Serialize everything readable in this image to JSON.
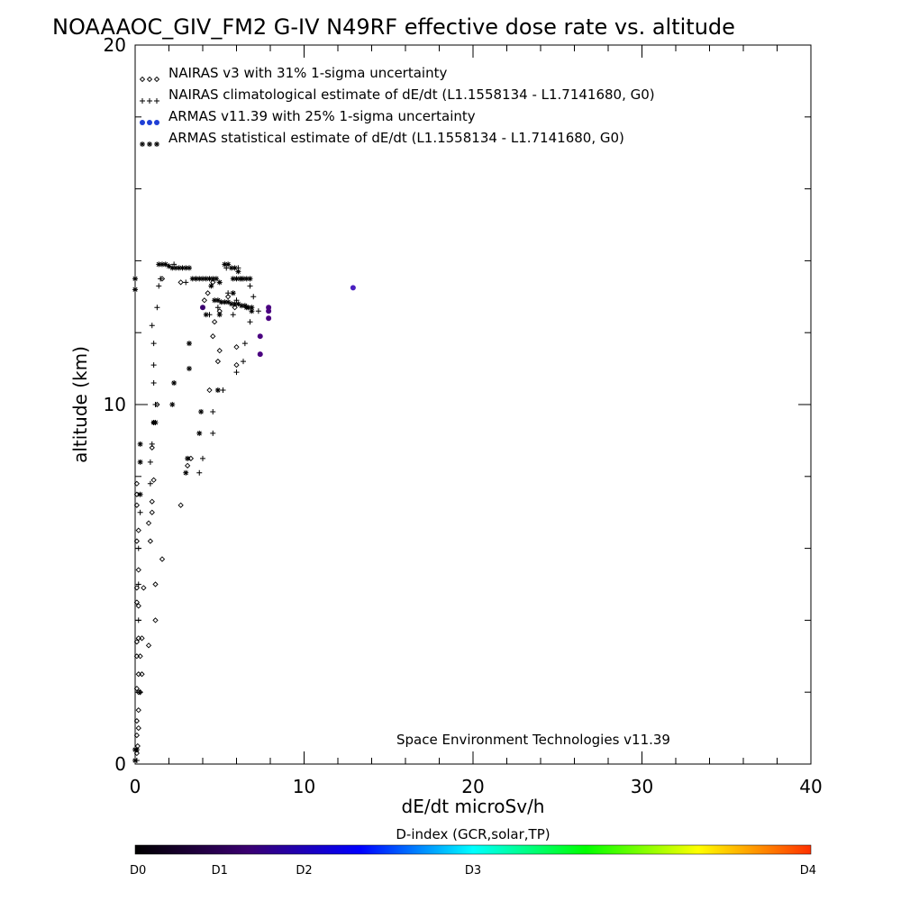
{
  "chart_data": {
    "type": "scatter",
    "title": "NOAAAOC_GIV_FM2 G-IV   N49RF  effective dose rate vs. altitude",
    "xlabel": "dE/dt microSv/h",
    "ylabel": "altitude (km)",
    "xlim": [
      0,
      40
    ],
    "ylim": [
      0,
      20
    ],
    "x_ticks": [
      "0",
      "10",
      "20",
      "30",
      "40"
    ],
    "y_ticks": [
      "0",
      "10",
      "20"
    ],
    "grid": false,
    "legend_position": "top-left",
    "annotation": "Space Environment Technologies v11.39",
    "colorbar": {
      "title": "D-index (GCR,solar,TP)",
      "stops": [
        "#000000",
        "#3a0070",
        "#0000ff",
        "#00ffff",
        "#00ff00",
        "#ffff00",
        "#ff3000"
      ],
      "labels": [
        {
          "text": "D0",
          "value": 0
        },
        {
          "text": "D1",
          "value": 0.5
        },
        {
          "text": "D2",
          "value": 1.0
        },
        {
          "text": "D3",
          "value": 2.0
        },
        {
          "text": "D4",
          "value": 4.0
        }
      ],
      "max": 4.0
    },
    "series": [
      {
        "name": "NAIRAS v3 with 31% 1-sigma uncertainty",
        "marker": "diamond",
        "color": "#000000",
        "points": [
          [
            0.1,
            0.3
          ],
          [
            0.15,
            0.5
          ],
          [
            0.1,
            0.8
          ],
          [
            0.2,
            1.0
          ],
          [
            0.1,
            1.2
          ],
          [
            0.2,
            1.5
          ],
          [
            0.2,
            2.0
          ],
          [
            0.3,
            2.0
          ],
          [
            0.1,
            2.1
          ],
          [
            0.2,
            2.5
          ],
          [
            0.4,
            2.5
          ],
          [
            0.1,
            3.0
          ],
          [
            0.3,
            3.0
          ],
          [
            0.8,
            3.3
          ],
          [
            0.1,
            3.4
          ],
          [
            0.2,
            3.5
          ],
          [
            0.4,
            3.5
          ],
          [
            1.2,
            4.0
          ],
          [
            0.2,
            4.4
          ],
          [
            0.1,
            4.5
          ],
          [
            0.1,
            4.9
          ],
          [
            0.5,
            4.9
          ],
          [
            1.2,
            5.0
          ],
          [
            0.2,
            5.4
          ],
          [
            1.6,
            5.7
          ],
          [
            0.1,
            6.2
          ],
          [
            0.9,
            6.2
          ],
          [
            0.2,
            6.5
          ],
          [
            0.8,
            6.7
          ],
          [
            1.0,
            7.0
          ],
          [
            0.1,
            7.2
          ],
          [
            0.1,
            7.5
          ],
          [
            1.0,
            7.3
          ],
          [
            2.7,
            7.2
          ],
          [
            0.1,
            7.8
          ],
          [
            1.1,
            7.9
          ],
          [
            3.1,
            8.3
          ],
          [
            3.3,
            8.5
          ],
          [
            1.0,
            8.8
          ],
          [
            1.1,
            9.5
          ],
          [
            1.3,
            10.0
          ],
          [
            4.4,
            10.4
          ],
          [
            4.9,
            11.2
          ],
          [
            6.0,
            11.1
          ],
          [
            5.0,
            11.5
          ],
          [
            6.0,
            11.6
          ],
          [
            4.6,
            11.9
          ],
          [
            4.7,
            12.3
          ],
          [
            5.0,
            12.6
          ],
          [
            5.9,
            12.7
          ],
          [
            4.1,
            12.9
          ],
          [
            4.3,
            13.1
          ],
          [
            5.5,
            13.0
          ],
          [
            4.6,
            13.4
          ],
          [
            1.6,
            13.5
          ],
          [
            2.7,
            13.4
          ]
        ]
      },
      {
        "name": "NAIRAS climatological estimate of dE/dt (L1.1558134 - L1.7141680, G0)",
        "marker": "plus",
        "color": "#000000",
        "points": [
          [
            0.1,
            0.1
          ],
          [
            0.3,
            2.0
          ],
          [
            0.2,
            4.0
          ],
          [
            0.2,
            5.0
          ],
          [
            0.2,
            6.0
          ],
          [
            0.3,
            7.0
          ],
          [
            0.9,
            7.8
          ],
          [
            0.9,
            8.4
          ],
          [
            1.0,
            8.9
          ],
          [
            1.2,
            9.5
          ],
          [
            1.2,
            10.0
          ],
          [
            1.1,
            10.6
          ],
          [
            1.1,
            11.1
          ],
          [
            1.1,
            11.7
          ],
          [
            1.0,
            12.2
          ],
          [
            1.3,
            12.7
          ],
          [
            1.4,
            13.3
          ],
          [
            3.8,
            8.1
          ],
          [
            4.0,
            8.5
          ],
          [
            4.6,
            9.2
          ],
          [
            4.6,
            9.8
          ],
          [
            5.2,
            10.4
          ],
          [
            6.0,
            10.9
          ],
          [
            6.4,
            11.2
          ],
          [
            6.5,
            11.7
          ],
          [
            6.8,
            12.3
          ],
          [
            7.3,
            12.6
          ],
          [
            7.0,
            13.0
          ],
          [
            6.8,
            13.3
          ],
          [
            4.9,
            12.7
          ],
          [
            4.4,
            12.5
          ],
          [
            5.8,
            12.5
          ],
          [
            2.3,
            13.9
          ],
          [
            1.5,
            13.5
          ],
          [
            3.0,
            13.4
          ],
          [
            3.6,
            13.5
          ],
          [
            5.4,
            13.8
          ],
          [
            6.1,
            13.8
          ],
          [
            6.3,
            13.5
          ],
          [
            5.5,
            13.1
          ],
          [
            6.0,
            12.9
          ]
        ]
      },
      {
        "name": "ARMAS v11.39 with 25% 1-sigma uncertainty",
        "marker": "dot",
        "color": "#1f3fd6",
        "points": [
          {
            "x": 12.9,
            "y": 13.25,
            "color": "#4a1fc0"
          },
          {
            "x": 7.9,
            "y": 12.6,
            "color": "#4a0080"
          },
          {
            "x": 7.9,
            "y": 12.7,
            "color": "#4a0080"
          },
          {
            "x": 7.9,
            "y": 12.4,
            "color": "#4a0080"
          },
          {
            "x": 7.4,
            "y": 11.9,
            "color": "#4a0080"
          },
          {
            "x": 7.4,
            "y": 11.4,
            "color": "#4a0080"
          },
          {
            "x": 4.0,
            "y": 12.7,
            "color": "#3a0070"
          }
        ]
      },
      {
        "name": "ARMAS statistical estimate of dE/dt (L1.1558134 - L1.7141680, G0)",
        "marker": "asterisk",
        "color": "#000000",
        "points": [
          [
            0.0,
            13.2
          ],
          [
            0.0,
            13.5
          ],
          [
            0.0,
            0.4
          ],
          [
            0.1,
            0.4
          ],
          [
            0.0,
            0.1
          ],
          [
            0.3,
            8.9
          ],
          [
            0.3,
            8.4
          ],
          [
            0.3,
            7.5
          ],
          [
            1.1,
            9.5
          ],
          [
            1.2,
            9.5
          ],
          [
            2.2,
            10.0
          ],
          [
            2.3,
            10.6
          ],
          [
            3.2,
            11.0
          ],
          [
            3.2,
            11.7
          ],
          [
            3.0,
            8.1
          ],
          [
            3.1,
            8.5
          ],
          [
            3.8,
            9.2
          ],
          [
            3.9,
            9.8
          ],
          [
            4.9,
            10.4
          ],
          [
            4.2,
            12.5
          ],
          [
            5.0,
            12.5
          ],
          [
            5.8,
            13.1
          ],
          [
            4.5,
            13.3
          ],
          [
            1.4,
            13.9
          ],
          [
            1.6,
            13.9
          ],
          [
            1.8,
            13.9
          ],
          [
            2.0,
            13.85
          ],
          [
            2.2,
            13.8
          ],
          [
            2.4,
            13.8
          ],
          [
            2.6,
            13.8
          ],
          [
            2.8,
            13.8
          ],
          [
            3.0,
            13.8
          ],
          [
            3.2,
            13.8
          ],
          [
            3.4,
            13.5
          ],
          [
            3.6,
            13.5
          ],
          [
            3.8,
            13.5
          ],
          [
            4.0,
            13.5
          ],
          [
            4.2,
            13.5
          ],
          [
            4.4,
            13.5
          ],
          [
            4.6,
            13.5
          ],
          [
            4.8,
            13.5
          ],
          [
            5.3,
            13.9
          ],
          [
            5.5,
            13.9
          ],
          [
            5.7,
            13.8
          ],
          [
            5.9,
            13.8
          ],
          [
            6.1,
            13.7
          ],
          [
            5.8,
            13.5
          ],
          [
            6.0,
            13.5
          ],
          [
            6.2,
            13.5
          ],
          [
            6.4,
            13.5
          ],
          [
            6.6,
            13.5
          ],
          [
            6.8,
            13.5
          ],
          [
            4.7,
            12.9
          ],
          [
            4.9,
            12.9
          ],
          [
            5.1,
            12.85
          ],
          [
            5.3,
            12.85
          ],
          [
            5.5,
            12.85
          ],
          [
            5.7,
            12.8
          ],
          [
            5.9,
            12.8
          ],
          [
            6.1,
            12.8
          ],
          [
            6.3,
            12.75
          ],
          [
            6.5,
            12.75
          ],
          [
            6.7,
            12.7
          ],
          [
            6.9,
            12.7
          ],
          [
            5.0,
            13.4
          ],
          [
            6.9,
            12.6
          ],
          [
            6.6,
            12.7
          ]
        ]
      }
    ]
  }
}
